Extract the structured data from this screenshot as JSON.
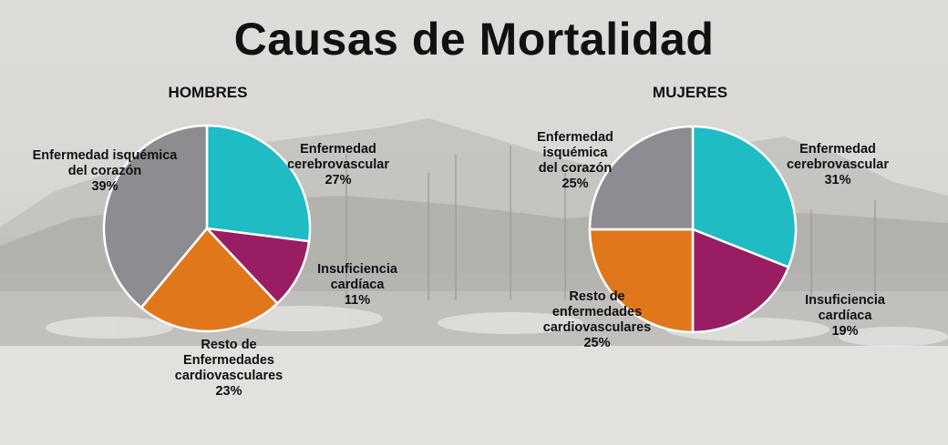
{
  "title": "Causas de Mortalidad",
  "colors": {
    "isquemica": "#8c8c91",
    "cerebrovascular": "#1fbcc4",
    "insuficiencia": "#991d63",
    "resto": "#e0781b"
  },
  "chart_data": [
    {
      "type": "pie",
      "title": "HOMBRES",
      "slices": [
        {
          "key": "cerebrovascular",
          "label": [
            "Enfermedad",
            "cerebrovascular"
          ],
          "value": 27,
          "pct": "27%"
        },
        {
          "key": "insuficiencia",
          "label": [
            "Insuficiencia",
            "cardíaca"
          ],
          "value": 11,
          "pct": "11%"
        },
        {
          "key": "resto",
          "label": [
            "Resto de",
            "Enfermedades",
            "cardiovasculares"
          ],
          "value": 23,
          "pct": "23%"
        },
        {
          "key": "isquemica",
          "label": [
            "Enfermedad isquémica",
            "del corazón"
          ],
          "value": 39,
          "pct": "39%"
        }
      ]
    },
    {
      "type": "pie",
      "title": "MUJERES",
      "slices": [
        {
          "key": "cerebrovascular",
          "label": [
            "Enfermedad",
            "cerebrovascular"
          ],
          "value": 31,
          "pct": "31%"
        },
        {
          "key": "insuficiencia",
          "label": [
            "Insuficiencia",
            "cardíaca"
          ],
          "value": 19,
          "pct": "19%"
        },
        {
          "key": "resto",
          "label": [
            "Resto de",
            "enfermedades",
            "cardiovasculares"
          ],
          "value": 25,
          "pct": "25%"
        },
        {
          "key": "isquemica",
          "label": [
            "Enfermedad",
            "isquémica",
            "del corazón"
          ],
          "value": 25,
          "pct": "25%"
        }
      ]
    }
  ]
}
